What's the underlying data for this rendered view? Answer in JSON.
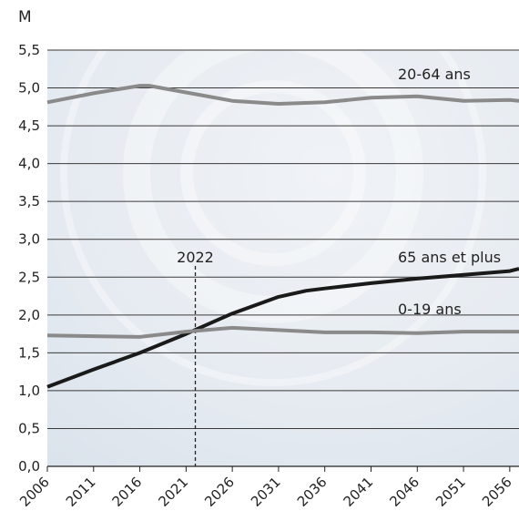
{
  "chart_data": {
    "type": "line",
    "title": "",
    "unit_label": "M",
    "xlabel": "",
    "ylabel": "",
    "x_ticks": [
      "2006",
      "2011",
      "2016",
      "2021",
      "2026",
      "2031",
      "2036",
      "2041",
      "2046",
      "2051",
      "2056"
    ],
    "y_ticks": [
      "0,0",
      "0,5",
      "1,0",
      "1,5",
      "2,0",
      "2,5",
      "3,0",
      "3,5",
      "4,0",
      "4,5",
      "5,0",
      "5,5"
    ],
    "xlim": [
      2006,
      2057
    ],
    "ylim": [
      0,
      5.5
    ],
    "grid": "horizontal",
    "series": [
      {
        "name": "20-64 ans",
        "color": "#8a8a8a",
        "x": [
          2006,
          2011,
          2016,
          2017,
          2021,
          2026,
          2031,
          2036,
          2041,
          2046,
          2051,
          2056,
          2057
        ],
        "y": [
          4.81,
          4.93,
          5.03,
          5.03,
          4.94,
          4.83,
          4.79,
          4.81,
          4.87,
          4.89,
          4.83,
          4.84,
          4.83
        ]
      },
      {
        "name": "65 ans et plus",
        "color": "#1a1a1a",
        "x": [
          2006,
          2011,
          2016,
          2021,
          2026,
          2031,
          2034,
          2036,
          2041,
          2046,
          2051,
          2056,
          2057
        ],
        "y": [
          1.05,
          1.28,
          1.5,
          1.75,
          2.02,
          2.24,
          2.32,
          2.35,
          2.42,
          2.48,
          2.53,
          2.58,
          2.61
        ]
      },
      {
        "name": "0-19 ans",
        "color": "#8a8a8a",
        "x": [
          2006,
          2011,
          2016,
          2021,
          2026,
          2031,
          2036,
          2041,
          2046,
          2051,
          2056,
          2057
        ],
        "y": [
          1.73,
          1.72,
          1.71,
          1.78,
          1.83,
          1.8,
          1.77,
          1.77,
          1.76,
          1.78,
          1.78,
          1.78
        ]
      }
    ],
    "annotations": [
      {
        "text": "2022",
        "x": 2022,
        "style": "dashed-vertical"
      }
    ]
  }
}
